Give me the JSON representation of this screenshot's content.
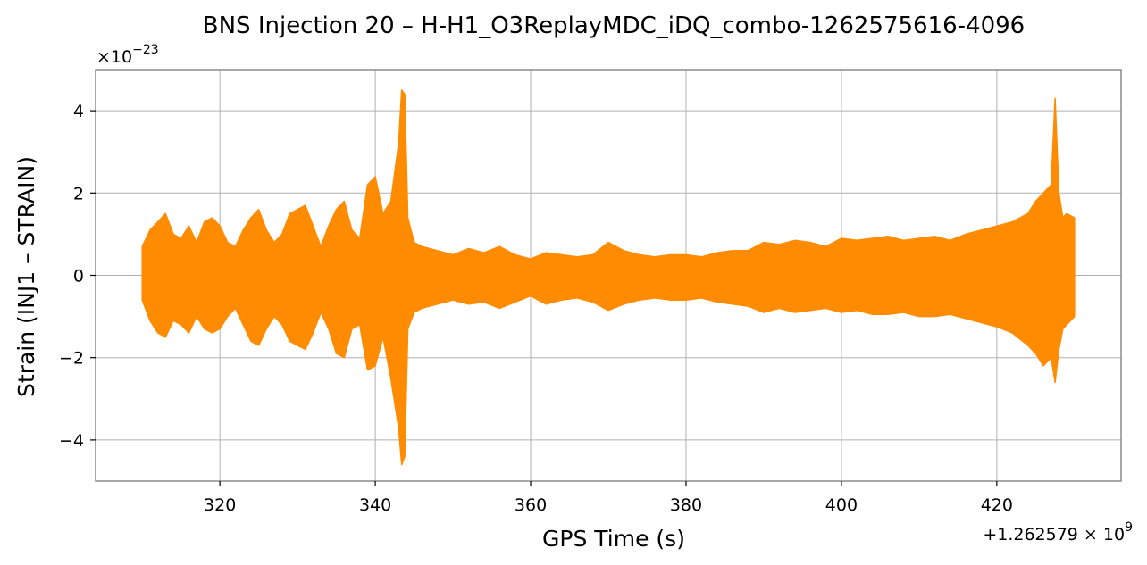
{
  "chart_data": {
    "type": "line",
    "title": "BNS Injection 20 – H-H1_O3ReplayMDC_iDQ_combo-1262575616-4096",
    "xlabel": "GPS Time (s)",
    "ylabel": "Strain (INJ1 – STRAIN)",
    "x_offset_label": "+1.262579 × 10",
    "x_offset_exponent": "9",
    "y_scale_label": "×10",
    "y_scale_exponent": "−23",
    "xlim": [
      304,
      436
    ],
    "ylim": [
      -5,
      5
    ],
    "grid": true,
    "xticks": [
      {
        "value": 320,
        "label": "320"
      },
      {
        "value": 340,
        "label": "340"
      },
      {
        "value": 360,
        "label": "360"
      },
      {
        "value": 380,
        "label": "380"
      },
      {
        "value": 400,
        "label": "400"
      },
      {
        "value": 420,
        "label": "420"
      }
    ],
    "yticks": [
      {
        "value": 4,
        "label": "4"
      },
      {
        "value": 2,
        "label": "2"
      },
      {
        "value": 0,
        "label": "0"
      },
      {
        "value": -2,
        "label": "−2"
      },
      {
        "value": -4,
        "label": "−4"
      }
    ],
    "series": [
      {
        "color": "#ff8c00",
        "x": [
          310,
          311,
          312,
          313,
          314,
          315,
          316,
          317,
          318,
          319,
          320,
          321,
          322,
          323,
          324,
          325,
          326,
          327,
          328,
          329,
          330,
          331,
          332,
          333,
          334,
          335,
          336,
          337,
          338,
          339,
          340,
          341,
          342,
          343,
          343.4,
          343.8,
          344.2,
          345,
          346,
          348,
          350,
          352,
          354,
          356,
          358,
          360,
          362,
          364,
          366,
          368,
          370,
          372,
          374,
          376,
          378,
          380,
          382,
          384,
          386,
          388,
          390,
          392,
          394,
          396,
          398,
          400,
          402,
          404,
          406,
          408,
          410,
          412,
          414,
          416,
          418,
          420,
          422,
          424,
          425,
          426,
          427,
          427.5,
          428,
          428.5,
          429,
          430
        ],
        "upper": [
          0.7,
          1.1,
          1.3,
          1.5,
          1.0,
          0.9,
          1.2,
          0.8,
          1.3,
          1.4,
          1.2,
          0.8,
          0.7,
          1.1,
          1.4,
          1.6,
          1.1,
          0.8,
          1.0,
          1.5,
          1.6,
          1.7,
          1.2,
          0.7,
          1.2,
          1.6,
          1.8,
          1.1,
          0.9,
          2.2,
          2.4,
          1.5,
          1.8,
          3.2,
          4.5,
          4.4,
          1.4,
          0.8,
          0.7,
          0.6,
          0.5,
          0.65,
          0.55,
          0.7,
          0.5,
          0.4,
          0.55,
          0.5,
          0.45,
          0.5,
          0.8,
          0.6,
          0.5,
          0.45,
          0.5,
          0.5,
          0.45,
          0.55,
          0.6,
          0.6,
          0.8,
          0.75,
          0.85,
          0.8,
          0.7,
          0.9,
          0.85,
          0.9,
          0.95,
          0.85,
          0.9,
          0.95,
          0.85,
          1.0,
          1.1,
          1.2,
          1.3,
          1.5,
          1.8,
          2.0,
          2.2,
          4.3,
          2.0,
          1.4,
          1.5,
          1.4
        ],
        "lower": [
          -0.6,
          -1.1,
          -1.4,
          -1.5,
          -1.1,
          -1.2,
          -1.4,
          -1.0,
          -1.3,
          -1.4,
          -1.3,
          -1.0,
          -0.8,
          -1.2,
          -1.6,
          -1.7,
          -1.3,
          -1.0,
          -1.2,
          -1.6,
          -1.7,
          -1.8,
          -1.4,
          -0.9,
          -1.3,
          -1.9,
          -2.0,
          -1.3,
          -1.2,
          -2.3,
          -2.2,
          -1.5,
          -2.5,
          -3.7,
          -4.6,
          -4.4,
          -1.3,
          -0.9,
          -0.8,
          -0.7,
          -0.6,
          -0.7,
          -0.65,
          -0.8,
          -0.65,
          -0.5,
          -0.7,
          -0.6,
          -0.55,
          -0.65,
          -0.85,
          -0.7,
          -0.6,
          -0.55,
          -0.6,
          -0.6,
          -0.55,
          -0.65,
          -0.7,
          -0.75,
          -0.9,
          -0.8,
          -0.9,
          -0.85,
          -0.8,
          -0.9,
          -0.85,
          -0.95,
          -0.95,
          -0.9,
          -1.0,
          -1.0,
          -0.95,
          -1.05,
          -1.15,
          -1.25,
          -1.4,
          -1.7,
          -1.9,
          -2.2,
          -2.0,
          -2.6,
          -1.8,
          -1.3,
          -1.2,
          -1.0
        ]
      }
    ]
  }
}
